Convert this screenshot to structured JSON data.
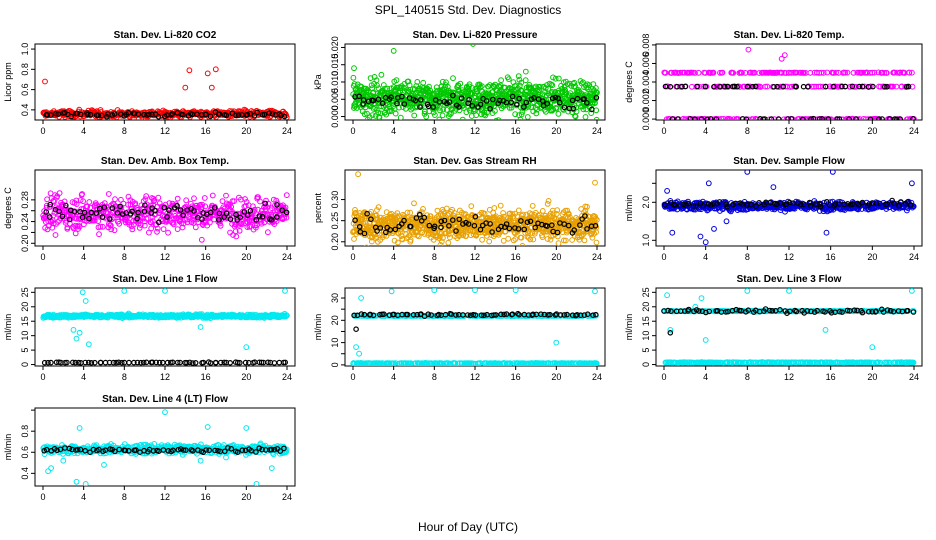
{
  "figure": {
    "title": "SPL_140515  Std. Dev. Diagnostics",
    "xlabel": "Hour of Day (UTC)"
  },
  "colors": {
    "red": "#ff0000",
    "green": "#00c800",
    "magenta": "#ff00ff",
    "orange": "#e8a000",
    "blue": "#0000dd",
    "cyan": "#00e8f0",
    "black": "#000000"
  },
  "chart_data": [
    {
      "type": "scatter",
      "title": "Stan. Dev. Li-820 CO2",
      "ylabel": "Licor ppm",
      "xlim": [
        0,
        24
      ],
      "ylim": [
        0.3,
        1.05
      ],
      "yticks": [
        0.4,
        0.6,
        0.8,
        1.0
      ],
      "ytick_labels": [
        "0.4",
        "0.6",
        "0.8",
        "1.0"
      ],
      "xticks": [
        0,
        4,
        8,
        12,
        16,
        20,
        24
      ],
      "series": [
        {
          "name": "raw",
          "color": "red",
          "count": 420,
          "base": 0.36,
          "sd": 0.025,
          "outliers": [
            [
              0.2,
              0.68
            ],
            [
              14.0,
              0.62
            ],
            [
              14.4,
              0.79
            ],
            [
              16.2,
              0.76
            ],
            [
              16.6,
              0.62
            ],
            [
              17.0,
              0.8
            ]
          ]
        },
        {
          "name": "mean",
          "color": "black",
          "count": 72,
          "base": 0.355,
          "sd": 0.015,
          "outliers": []
        }
      ]
    },
    {
      "type": "scatter",
      "title": "Stan. Dev. Li-820 Pressure",
      "ylabel": "kPa",
      "xlim": [
        0,
        24
      ],
      "ylim": [
        -0.001,
        0.021
      ],
      "yticks": [
        0.0,
        0.005,
        0.01,
        0.015,
        0.02
      ],
      "ytick_labels": [
        "0.000",
        "0.005",
        "0.010",
        "0.015",
        "0.020"
      ],
      "xticks": [
        0,
        4,
        8,
        12,
        16,
        20,
        24
      ],
      "series": [
        {
          "name": "raw",
          "color": "green",
          "count": 900,
          "base": 0.0055,
          "sd": 0.0035,
          "outliers": [
            [
              0.1,
              0.014
            ],
            [
              4.0,
              0.019
            ],
            [
              11.8,
              0.021
            ],
            [
              17.0,
              0.013
            ]
          ]
        },
        {
          "name": "mean",
          "color": "black",
          "count": 72,
          "base": 0.0045,
          "sd": 0.0015,
          "outliers": []
        }
      ]
    },
    {
      "type": "scatter",
      "title": "Stan. Dev. Li-820 Temp.",
      "ylabel": "degrees C",
      "xlim": [
        0,
        24
      ],
      "ylim": [
        -0.0001,
        0.0081
      ],
      "yticks": [
        0.0,
        0.002,
        0.004,
        0.006,
        0.008
      ],
      "ytick_labels": [
        "0.000",
        "0.002",
        "0.004",
        "0.006",
        "0.008"
      ],
      "xticks": [
        0,
        4,
        8,
        12,
        16,
        20,
        24
      ],
      "series": [
        {
          "name": "raw",
          "color": "magenta",
          "count": 360,
          "levels": [
            0.0,
            0.0035,
            0.005
          ],
          "outliers": [
            [
              8.1,
              0.0075
            ],
            [
              11.3,
              0.0065
            ],
            [
              11.6,
              0.0069
            ]
          ]
        },
        {
          "name": "mean",
          "color": "black",
          "count": 72,
          "levels": [
            0.0,
            0.0035
          ],
          "outliers": []
        }
      ]
    },
    {
      "type": "scatter",
      "title": "Stan. Dev. Amb. Box Temp.",
      "ylabel": "degrees C",
      "xlim": [
        0,
        24
      ],
      "ylim": [
        0.195,
        0.335
      ],
      "yticks": [
        0.2,
        0.22,
        0.24,
        0.26,
        0.28
      ],
      "ytick_labels": [
        "0.20",
        "",
        "0.24",
        "",
        "0.28"
      ],
      "xticks": [
        0,
        4,
        8,
        12,
        16,
        20,
        24
      ],
      "series": [
        {
          "name": "raw",
          "color": "magenta",
          "count": 600,
          "base": 0.255,
          "sd": 0.022,
          "outliers": []
        },
        {
          "name": "mean",
          "color": "black",
          "count": 72,
          "base": 0.255,
          "sd": 0.012,
          "outliers": []
        }
      ]
    },
    {
      "type": "scatter",
      "title": "Stan. Dev. Gas Stream RH",
      "ylabel": "percent",
      "xlim": [
        0,
        24
      ],
      "ylim": [
        0.19,
        0.37
      ],
      "yticks": [
        0.2,
        0.25,
        0.3
      ],
      "ytick_labels": [
        "0.20",
        "0.25",
        "0.30"
      ],
      "xticks": [
        0,
        4,
        8,
        12,
        16,
        20,
        24
      ],
      "series": [
        {
          "name": "raw",
          "color": "orange",
          "count": 900,
          "base": 0.24,
          "sd": 0.025,
          "outliers": [
            [
              0.5,
              0.36
            ],
            [
              23.8,
              0.34
            ]
          ]
        },
        {
          "name": "mean",
          "color": "black",
          "count": 72,
          "base": 0.24,
          "sd": 0.015,
          "outliers": []
        }
      ]
    },
    {
      "type": "scatter",
      "title": "Stan. Dev. Sample Flow",
      "ylabel": "ml/min",
      "xlim": [
        0,
        24
      ],
      "ylim": [
        0.85,
        2.85
      ],
      "yticks": [
        1.0,
        1.5,
        2.0,
        2.5
      ],
      "ytick_labels": [
        "1.0",
        "",
        "2.0",
        ""
      ],
      "xticks": [
        0,
        4,
        8,
        12,
        16,
        20,
        24
      ],
      "series": [
        {
          "name": "raw",
          "color": "blue",
          "count": 500,
          "base": 1.9,
          "sd": 0.08,
          "outliers": [
            [
              0.3,
              2.3
            ],
            [
              0.8,
              1.2
            ],
            [
              3.5,
              1.1
            ],
            [
              4.0,
              0.95
            ],
            [
              4.3,
              2.5
            ],
            [
              4.8,
              1.3
            ],
            [
              6.0,
              1.5
            ],
            [
              8.0,
              2.8
            ],
            [
              10.5,
              2.4
            ],
            [
              15.6,
              1.2
            ],
            [
              16.2,
              2.8
            ],
            [
              23.8,
              2.5
            ]
          ]
        },
        {
          "name": "mean",
          "color": "black",
          "count": 72,
          "base": 1.95,
          "sd": 0.05,
          "outliers": []
        }
      ]
    },
    {
      "type": "scatter",
      "title": "Stan. Dev. Line 1 Flow",
      "ylabel": "ml/min",
      "xlim": [
        0,
        24
      ],
      "ylim": [
        -0.5,
        26.5
      ],
      "yticks": [
        0,
        5,
        10,
        15,
        20,
        25
      ],
      "ytick_labels": [
        "0",
        "5",
        "10",
        "15",
        "20",
        "25"
      ],
      "xticks": [
        0,
        4,
        8,
        12,
        16,
        20,
        24
      ],
      "series": [
        {
          "name": "raw",
          "color": "cyan",
          "count": 500,
          "base": 16.8,
          "sd": 0.4,
          "outliers": [
            [
              3.0,
              12.0
            ],
            [
              3.3,
              9.0
            ],
            [
              3.6,
              11.0
            ],
            [
              3.9,
              25.0
            ],
            [
              4.2,
              22.0
            ],
            [
              4.5,
              7.0
            ],
            [
              8.0,
              25.5
            ],
            [
              12.0,
              25.5
            ],
            [
              15.5,
              13.0
            ],
            [
              20.0,
              6.0
            ],
            [
              23.8,
              25.5
            ]
          ]
        },
        {
          "name": "mean",
          "color": "black",
          "count": 72,
          "base": 0.7,
          "sd": 0.1,
          "outliers": []
        }
      ]
    },
    {
      "type": "scatter",
      "title": "Stan. Dev. Line 2 Flow",
      "ylabel": "ml/min",
      "xlim": [
        0,
        24
      ],
      "ylim": [
        -0.5,
        34.5
      ],
      "yticks": [
        0,
        5,
        10,
        15,
        20,
        25,
        30
      ],
      "ytick_labels": [
        "0",
        "",
        "10",
        "",
        "20",
        "",
        "30"
      ],
      "xticks": [
        0,
        4,
        8,
        12,
        16,
        20,
        24
      ],
      "series": [
        {
          "name": "raw",
          "color": "cyan",
          "count": 500,
          "levels": [
            0.7,
            22.0
          ],
          "outliers": [
            [
              0.3,
              8.0
            ],
            [
              0.6,
              5.0
            ],
            [
              0.8,
              30.0
            ],
            [
              3.8,
              33.0
            ],
            [
              8.0,
              33.5
            ],
            [
              12.0,
              33.5
            ],
            [
              16.0,
              33.5
            ],
            [
              20.0,
              10.0
            ],
            [
              23.8,
              33.0
            ]
          ]
        },
        {
          "name": "mean",
          "color": "black",
          "count": 72,
          "base": 22.5,
          "sd": 0.3,
          "outliers": [
            [
              0.3,
              16.0
            ]
          ]
        }
      ]
    },
    {
      "type": "scatter",
      "title": "Stan. Dev. Line 3 Flow",
      "ylabel": "ml/min",
      "xlim": [
        0,
        24
      ],
      "ylim": [
        -0.5,
        26.5
      ],
      "yticks": [
        0,
        5,
        10,
        15,
        20,
        25
      ],
      "ytick_labels": [
        "0",
        "5",
        "10",
        "15",
        "20",
        "25"
      ],
      "xticks": [
        0,
        4,
        8,
        12,
        16,
        20,
        24
      ],
      "series": [
        {
          "name": "raw",
          "color": "cyan",
          "count": 500,
          "levels": [
            0.7,
            18.5
          ],
          "outliers": [
            [
              0.3,
              24.0
            ],
            [
              0.6,
              12.0
            ],
            [
              3.0,
              20.0
            ],
            [
              3.6,
              23.0
            ],
            [
              4.0,
              8.5
            ],
            [
              8.0,
              25.5
            ],
            [
              12.0,
              25.5
            ],
            [
              15.5,
              12.0
            ],
            [
              20.0,
              6.0
            ],
            [
              23.8,
              25.5
            ]
          ]
        },
        {
          "name": "mean",
          "color": "black",
          "count": 72,
          "base": 18.5,
          "sd": 0.4,
          "outliers": [
            [
              0.6,
              11.0
            ]
          ]
        }
      ]
    },
    {
      "type": "scatter",
      "title": "Stan. Dev. Line 4 (LT) Flow",
      "ylabel": "ml/min",
      "xlim": [
        0,
        24
      ],
      "ylim": [
        0.28,
        1.02
      ],
      "yticks": [
        0.4,
        0.6,
        0.8,
        1.0
      ],
      "ytick_labels": [
        "0.4",
        "0.6",
        "0.8",
        ""
      ],
      "xticks": [
        0,
        4,
        8,
        12,
        16,
        20,
        24
      ],
      "series": [
        {
          "name": "raw",
          "color": "cyan",
          "count": 500,
          "base": 0.63,
          "sd": 0.03,
          "outliers": [
            [
              0.5,
              0.42
            ],
            [
              0.8,
              0.45
            ],
            [
              2.0,
              0.52
            ],
            [
              3.3,
              0.32
            ],
            [
              3.6,
              0.83
            ],
            [
              4.2,
              0.3
            ],
            [
              6.0,
              0.48
            ],
            [
              12.0,
              0.98
            ],
            [
              15.5,
              0.52
            ],
            [
              16.2,
              0.84
            ],
            [
              18.0,
              0.55
            ],
            [
              20.0,
              0.83
            ],
            [
              21.0,
              0.3
            ],
            [
              22.5,
              0.45
            ]
          ]
        },
        {
          "name": "mean",
          "color": "black",
          "count": 72,
          "base": 0.62,
          "sd": 0.015,
          "outliers": []
        }
      ]
    }
  ]
}
